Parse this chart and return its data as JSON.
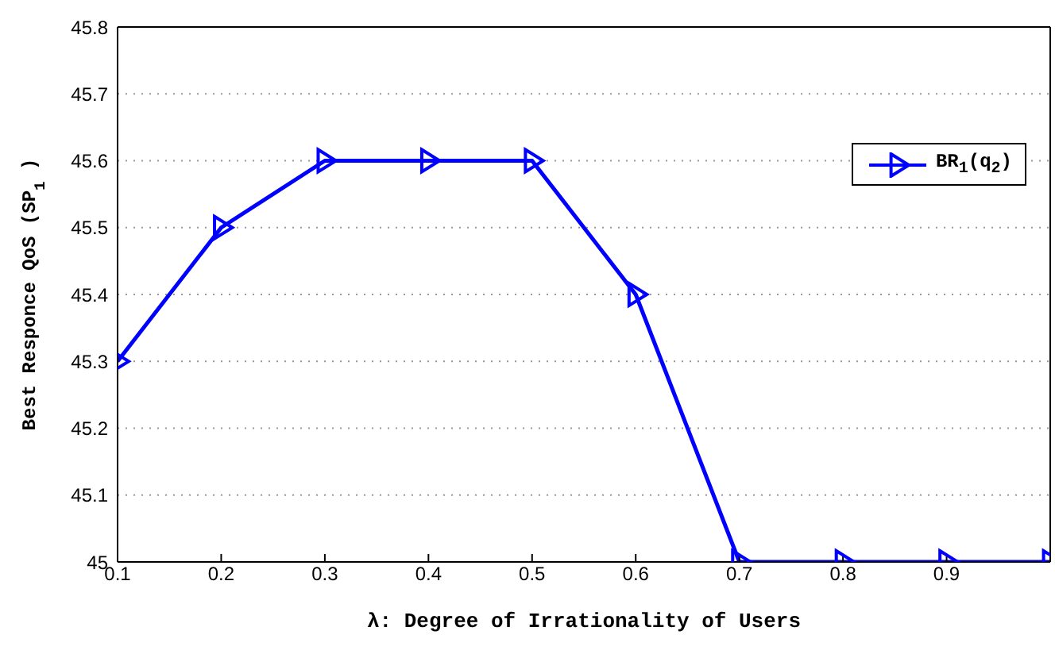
{
  "chart_data": {
    "type": "line",
    "xlabel": "λ: Degree of Irrationality of Users",
    "ylabel": "Best Responce QoS (SP$_{1}$)",
    "x": [
      0.1,
      0.2,
      0.3,
      0.4,
      0.5,
      0.6,
      0.7,
      0.8,
      0.9,
      1.0
    ],
    "series": [
      {
        "name": "BR$_{1}$(q$_{2}$)",
        "color": "#0000ff",
        "values": [
          45.3,
          45.5,
          45.6,
          45.6,
          45.6,
          45.4,
          45,
          45,
          45,
          45
        ]
      }
    ],
    "xlim": [
      0.1,
      1.0
    ],
    "xticks": [
      0.1,
      0.2,
      0.3,
      0.4,
      0.5,
      0.6,
      0.7,
      0.8,
      0.9
    ],
    "ylim": [
      45,
      45.8
    ],
    "yticks": [
      45,
      45.1,
      45.2,
      45.3,
      45.4,
      45.5,
      45.6,
      45.7,
      45.8
    ],
    "grid": "y",
    "legend": "top right",
    "marker": "triangle",
    "line_style": "solid"
  }
}
